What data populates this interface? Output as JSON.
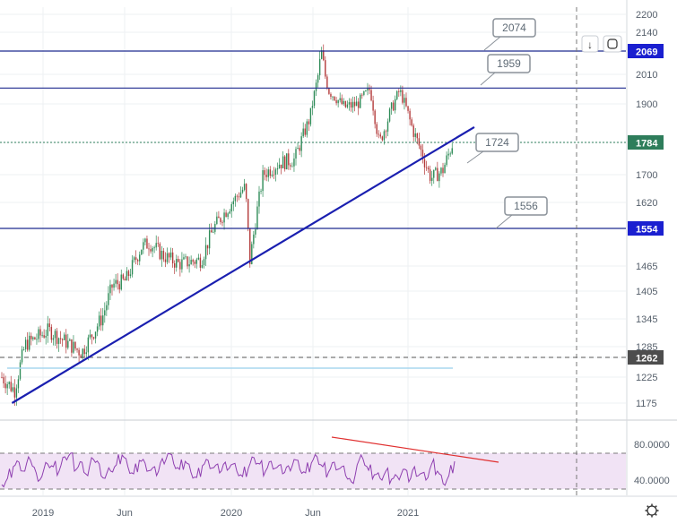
{
  "chart_data": [
    {
      "type": "candlestick",
      "title": "",
      "x_ticks": [
        "2019",
        "Jun",
        "2020",
        "Jun",
        "2021"
      ],
      "y_ticks": [
        2200,
        2140,
        2069,
        2010,
        1900,
        1784,
        1700,
        1620,
        1554,
        1465,
        1405,
        1345,
        1285,
        1262,
        1225,
        1175
      ],
      "ylim": [
        1140,
        2210
      ],
      "price_series": {
        "x": [
          "2018-11-20",
          "2018-12-15",
          "2019-01-05",
          "2019-02-20",
          "2019-04-01",
          "2019-04-25",
          "2019-06-05",
          "2019-06-25",
          "2019-07-20",
          "2019-08-20",
          "2019-09-05",
          "2019-10-01",
          "2019-11-01",
          "2019-12-15",
          "2020-01-08",
          "2020-02-24",
          "2020-03-10",
          "2020-03-19",
          "2020-04-14",
          "2020-05-15",
          "2020-06-15",
          "2020-07-15",
          "2020-08-06",
          "2020-08-20",
          "2020-09-20",
          "2020-10-15",
          "2020-11-09",
          "2020-11-27",
          "2020-12-20",
          "2021-01-06",
          "2021-02-01",
          "2021-03-08",
          "2021-03-31",
          "2021-04-20"
        ],
        "close": [
          1225,
          1200,
          1290,
          1320,
          1290,
          1272,
          1350,
          1420,
          1430,
          1510,
          1520,
          1490,
          1470,
          1480,
          1555,
          1640,
          1665,
          1475,
          1700,
          1730,
          1740,
          1860,
          2067,
          1950,
          1890,
          1900,
          1955,
          1780,
          1880,
          1950,
          1820,
          1690,
          1710,
          1784
        ]
      },
      "horizontal_levels": [
        {
          "value": 2069,
          "label": "2069",
          "color": "#1f2a8f"
        },
        {
          "value": 1959,
          "label": "1959",
          "color": "#1f2a8f"
        },
        {
          "value": 1784,
          "label": "1784",
          "color": "#2e7d5b",
          "style": "dotted"
        },
        {
          "value": 1554,
          "label": "1554",
          "color": "#1f2a8f"
        },
        {
          "value": 1262,
          "label": "1262",
          "color": "#555555",
          "style": "dashed"
        }
      ],
      "trendline": {
        "color": "#1a1fb0",
        "from": {
          "x": "2018-12-10",
          "y": 1175
        },
        "to": {
          "x": "2021-06-01",
          "y": 1830
        }
      },
      "callouts": [
        "2074",
        "1959",
        "1724",
        "1556"
      ],
      "colors": {
        "up": "#2e8b57",
        "down": "#b33a3a"
      }
    },
    {
      "type": "line",
      "title": "",
      "y_ticks": [
        "80.0000",
        "40.0000"
      ],
      "ylim": [
        20,
        100
      ],
      "band": [
        70,
        30
      ],
      "series": [
        {
          "values": [
            35,
            42,
            55,
            60,
            50,
            62,
            48,
            44,
            58,
            55,
            50,
            66,
            70,
            52,
            60,
            45,
            63,
            58,
            42,
            50,
            57,
            68,
            55,
            47,
            62,
            59,
            51,
            45,
            64,
            70,
            58,
            52,
            61,
            49,
            43,
            56,
            62,
            54,
            48,
            60,
            57,
            50,
            44,
            53,
            65,
            58,
            50,
            61,
            54,
            47,
            56,
            63,
            52,
            48,
            59,
            66,
            55,
            49,
            60,
            53,
            45,
            38,
            57,
            64,
            51,
            46,
            42,
            50,
            41,
            44,
            52,
            38,
            55,
            47,
            40,
            58,
            50,
            36,
            45,
            61
          ]
        }
      ],
      "line_color": "#8e3fb0",
      "divergence_line": {
        "color": "#e03030",
        "from": 88,
        "to": 60
      }
    }
  ]
}
